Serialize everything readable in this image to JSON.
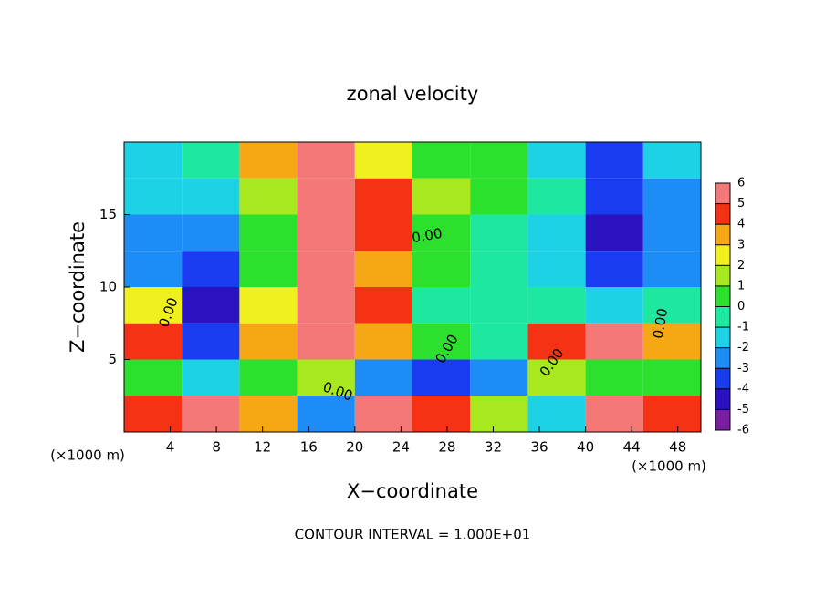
{
  "chart_data": {
    "type": "contour",
    "title": "zonal velocity",
    "x_label": "X−coordinate",
    "y_label": "Z−coordinate",
    "x_unit_left": "(×1000 m)",
    "x_unit_right": "(×1000 m)",
    "note": "CONTOUR INTERVAL = 1.000E+01",
    "contour_labels": [
      "0.00",
      "0.00",
      "0.00",
      "0.00",
      "0.00",
      "0.00"
    ],
    "xlim": [
      0,
      50
    ],
    "ylim": [
      0,
      20
    ],
    "xticks": [
      4,
      8,
      12,
      16,
      20,
      24,
      28,
      32,
      36,
      40,
      44,
      48
    ],
    "yticks": [
      5,
      10,
      15
    ],
    "x": [
      2.5,
      7.5,
      12.5,
      17.5,
      22.5,
      27.5,
      32.5,
      37.5,
      42.5,
      47.5
    ],
    "y": [
      18.75,
      16.25,
      13.75,
      11.25,
      8.75,
      6.25,
      3.75,
      1.25
    ],
    "z": [
      [
        -2,
        -1,
        3,
        6,
        2,
        0,
        0,
        -2,
        -4,
        -2
      ],
      [
        -2,
        -2,
        1,
        6,
        4,
        1,
        0,
        -1,
        -4,
        -3
      ],
      [
        -3,
        -3,
        0,
        6,
        4,
        0,
        -1,
        -2,
        -5,
        -3
      ],
      [
        -3,
        -4,
        0,
        5,
        3,
        0,
        -1,
        -2,
        -4,
        -3
      ],
      [
        2,
        -5,
        2,
        5,
        4,
        -1,
        -1,
        -1,
        -2,
        -1
      ],
      [
        4,
        -4,
        3,
        5,
        3,
        0,
        -1,
        4,
        6,
        3
      ],
      [
        0,
        -2,
        0,
        1,
        -3,
        -4,
        -3,
        1,
        0,
        0
      ],
      [
        4,
        5,
        3,
        -3,
        5,
        4,
        1,
        -2,
        5,
        4
      ]
    ],
    "levels": [
      -6,
      -5,
      -4,
      -3,
      -2,
      -1,
      0,
      1,
      2,
      3,
      4,
      5,
      6
    ],
    "colors": [
      "#7a1fa2",
      "#2a12c0",
      "#1a3cf0",
      "#1e8cf5",
      "#1ed2e6",
      "#1ee8a0",
      "#2ee02e",
      "#a8e81e",
      "#f0f01e",
      "#f5a814",
      "#f53214",
      "#f57878"
    ]
  }
}
